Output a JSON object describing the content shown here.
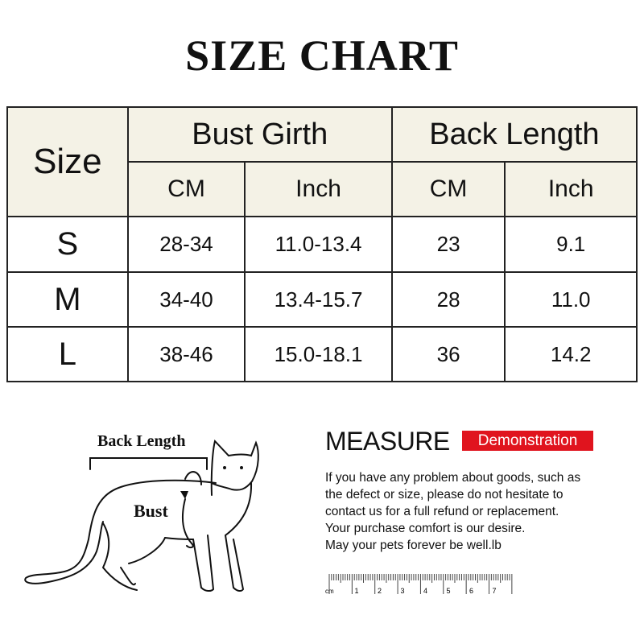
{
  "title": "SIZE CHART",
  "table": {
    "size_header": "Size",
    "groups": [
      "Bust Girth",
      "Back Length"
    ],
    "units": [
      "CM",
      "Inch",
      "CM",
      "Inch"
    ],
    "rows": [
      [
        "S",
        "28-34",
        "11.0-13.4",
        "23",
        "9.1"
      ],
      [
        "M",
        "34-40",
        "13.4-15.7",
        "28",
        "11.0"
      ],
      [
        "L",
        "38-46",
        "15.0-18.1",
        "36",
        "14.2"
      ]
    ]
  },
  "diagram": {
    "back_length_label": "Back Length",
    "bust_label": "Bust"
  },
  "measure": {
    "title": "MEASURE",
    "badge": "Demonstration",
    "badge_color": "#e0141e",
    "lines": [
      "If you have any problem about goods, such as",
      "the defect or size, please do not hesitate to",
      "contact us for a full refund or replacement.",
      "Your purchase comfort is our desire.",
      "May your pets forever be well.lb"
    ]
  },
  "ruler": {
    "unit": "cm",
    "numbers": [
      "1",
      "2",
      "3",
      "4",
      "5",
      "6",
      "7"
    ]
  }
}
